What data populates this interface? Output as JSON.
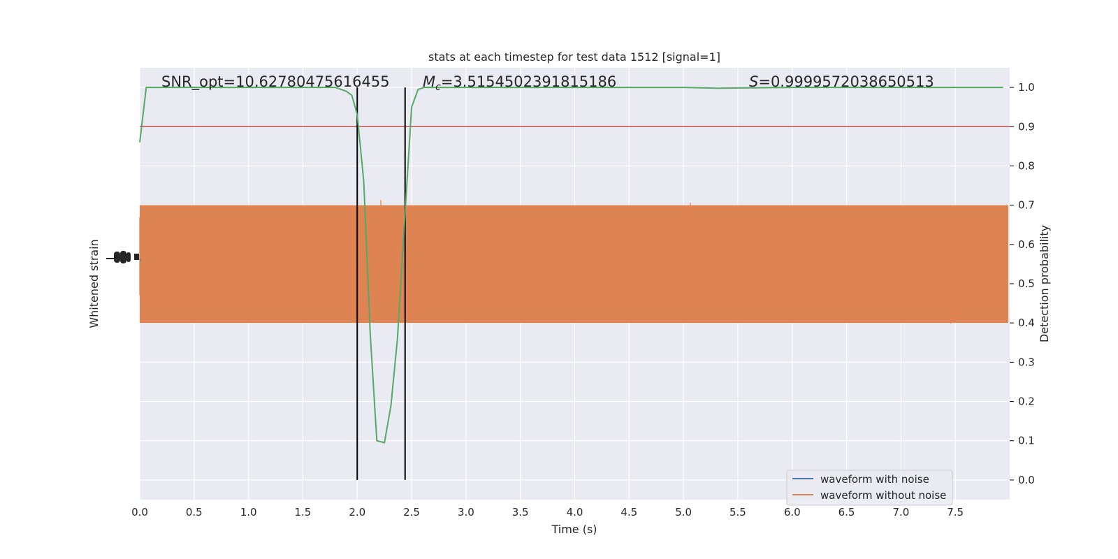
{
  "chart_data": {
    "type": "line",
    "title": "stats at each timestep for test data 1512 [signal=1]",
    "xlabel": "Time (s)",
    "ylabel_left": "Whitened strain",
    "ylabel_right": "Detection probability",
    "xlim": [
      0.0,
      8.0
    ],
    "ylim_right": [
      -0.05,
      1.05
    ],
    "x_ticks": [
      0.0,
      0.5,
      1.0,
      1.5,
      2.0,
      2.5,
      3.0,
      3.5,
      4.0,
      4.5,
      5.0,
      5.5,
      6.0,
      6.5,
      7.0,
      7.5
    ],
    "x_tick_labels": [
      "0.0",
      "0.5",
      "1.0",
      "1.5",
      "2.0",
      "2.5",
      "3.0",
      "3.5",
      "4.0",
      "4.5",
      "5.0",
      "5.5",
      "6.0",
      "6.5",
      "7.0",
      "7.5"
    ],
    "y_right_ticks": [
      0.0,
      0.1,
      0.2,
      0.3,
      0.4,
      0.5,
      0.6,
      0.7,
      0.8,
      0.9,
      1.0
    ],
    "y_right_tick_labels": [
      "0.0",
      "0.1",
      "0.2",
      "0.3",
      "0.4",
      "0.5",
      "0.6",
      "0.7",
      "0.8",
      "0.9",
      "1.0"
    ],
    "grid": true,
    "legend_position": "lower-right",
    "annotations": {
      "snr": "SNR_opt=10.62780475616455",
      "mc_symbol": "M",
      "mc_sub": "c",
      "mc_value": "=3.5154502391815186",
      "s_symbol": "S",
      "s_value": "=0.9999572038650513"
    },
    "threshold": {
      "value": 0.9,
      "color": "#c44e52"
    },
    "vlines": [
      2.0,
      2.44
    ],
    "series": [
      {
        "name": "waveform with noise",
        "color": "#4c72b0",
        "style": "strain trace (hidden behind orange)"
      },
      {
        "name": "waveform without noise",
        "color": "#dd8452",
        "style": "strain trace, amplitude envelope approx ±0.15 of probability axis around 0.56"
      },
      {
        "name": "",
        "color": "#55a868",
        "axis": "right",
        "x": [
          0.0,
          0.06,
          0.12,
          0.25,
          0.5,
          1.0,
          1.5,
          1.8,
          1.9,
          1.95,
          2.0,
          2.06,
          2.12,
          2.18,
          2.25,
          2.31,
          2.37,
          2.44,
          2.5,
          2.56,
          2.62,
          3.0,
          4.0,
          5.0,
          5.3,
          6.0,
          7.0,
          7.5,
          7.94
        ],
        "y": [
          0.86,
          1.0,
          1.0,
          1.0,
          1.0,
          1.0,
          1.0,
          1.0,
          0.99,
          0.98,
          0.93,
          0.76,
          0.37,
          0.1,
          0.095,
          0.19,
          0.36,
          0.68,
          0.95,
          0.995,
          1.0,
          1.0,
          1.0,
          1.0,
          0.998,
          1.0,
          1.0,
          1.0,
          1.0
        ]
      }
    ]
  }
}
